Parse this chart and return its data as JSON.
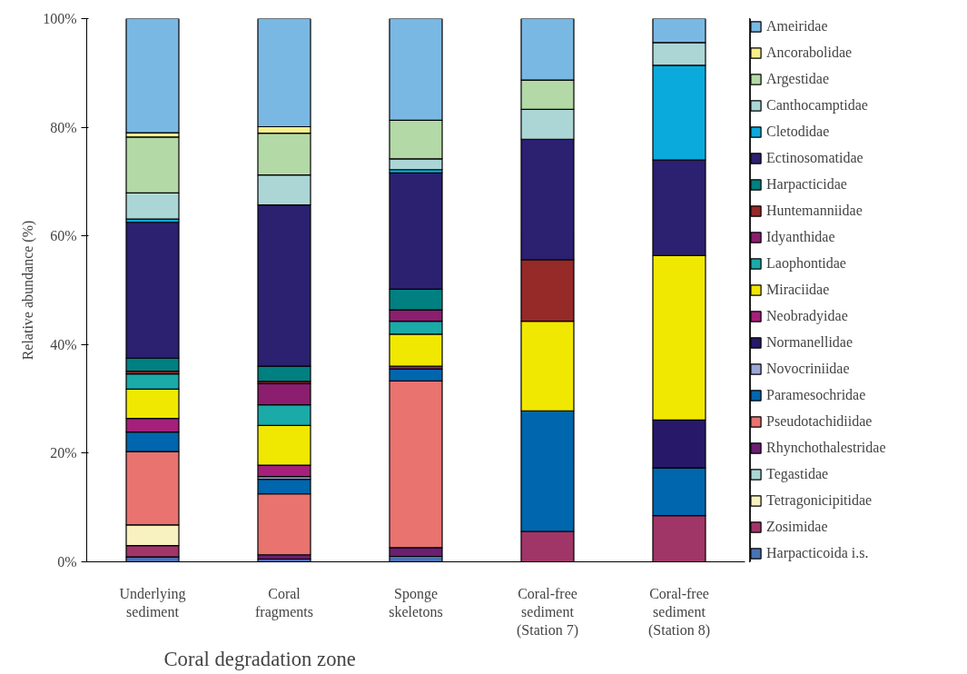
{
  "chart_data": {
    "type": "bar",
    "stacked": true,
    "ylabel": "Relative abundance (%)",
    "categories": [
      "Underlying sediment",
      "Coral fragments",
      "Sponge skeletons",
      "Coral-free sediment (Station 7)",
      "Coral-free sediment (Station 8)"
    ],
    "ylim": [
      0,
      100
    ],
    "yticks": [
      {
        "value": 0,
        "label": "0%"
      },
      {
        "value": 20,
        "label": "20%"
      },
      {
        "value": 40,
        "label": "40%"
      },
      {
        "value": 60,
        "label": "60%"
      },
      {
        "value": 80,
        "label": "80%"
      },
      {
        "value": 100,
        "label": "100%"
      }
    ],
    "grid": false,
    "legend": "right",
    "annotations": [
      "Coral degradation zone"
    ],
    "series": [
      {
        "name": "Harpacticoida i.s.",
        "color": "#4a72b4",
        "values": [
          0.9,
          0.5,
          1.0,
          null,
          null
        ]
      },
      {
        "name": "Zosimidae",
        "color": "#a03668",
        "values": [
          2.1,
          null,
          null,
          5.6,
          8.5
        ]
      },
      {
        "name": "Tetragonicipitidae",
        "color": "#f8f2c0",
        "values": [
          3.8,
          null,
          null,
          null,
          null
        ]
      },
      {
        "name": "Tegastidae",
        "color": "#acd6d6",
        "values": [
          null,
          null,
          null,
          null,
          null
        ]
      },
      {
        "name": "Rhynchothalestridae",
        "color": "#6a1f70",
        "values": [
          null,
          0.8,
          1.6,
          null,
          null
        ]
      },
      {
        "name": "Pseudotachidiidae",
        "color": "#e8736f",
        "values": [
          13.5,
          11.2,
          30.7,
          null,
          null
        ]
      },
      {
        "name": "Paramesochridae",
        "color": "#0066ad",
        "values": [
          3.6,
          2.7,
          2.2,
          22.2,
          8.8
        ]
      },
      {
        "name": "Novocriniidae",
        "color": "#9aa8d6",
        "values": [
          null,
          0.5,
          null,
          null,
          null
        ]
      },
      {
        "name": "Normanellidae",
        "color": "#28186a",
        "values": [
          null,
          null,
          null,
          null,
          8.8
        ]
      },
      {
        "name": "Neobradyidae",
        "color": "#a5207a",
        "values": [
          2.5,
          2.1,
          0.5,
          null,
          null
        ]
      },
      {
        "name": "Miraciidae",
        "color": "#f0e800",
        "values": [
          5.4,
          7.3,
          5.9,
          16.5,
          30.3
        ]
      },
      {
        "name": "Laophontidae",
        "color": "#1aaaa8",
        "values": [
          2.8,
          3.8,
          2.4,
          null,
          null
        ]
      },
      {
        "name": "Idyanthidae",
        "color": "#8b1e6e",
        "values": [
          null,
          3.9,
          2.1,
          null,
          null
        ]
      },
      {
        "name": "Huntemanniidae",
        "color": "#952a29",
        "values": [
          0.5,
          0.4,
          null,
          11.3,
          null
        ]
      },
      {
        "name": "Harpacticidae",
        "color": "#008080",
        "values": [
          2.4,
          2.8,
          3.8,
          null,
          null
        ]
      },
      {
        "name": "Ectinosomatidae",
        "color": "#2c2070",
        "values": [
          25.0,
          29.7,
          21.4,
          22.2,
          17.6
        ]
      },
      {
        "name": "Cletodidae",
        "color": "#0aabdc",
        "values": [
          0.6,
          null,
          0.6,
          null,
          17.4
        ]
      },
      {
        "name": "Canthocamptidae",
        "color": "#acd6d6",
        "values": [
          4.8,
          5.5,
          2.0,
          5.5,
          4.2
        ]
      },
      {
        "name": "Argestidae",
        "color": "#b3d9a6",
        "values": [
          10.3,
          7.7,
          7.1,
          5.4,
          null
        ]
      },
      {
        "name": "Ancorabolidae",
        "color": "#f7f08c",
        "values": [
          0.8,
          1.2,
          null,
          null,
          null
        ]
      },
      {
        "name": "Ameiridae",
        "color": "#7ab8e4",
        "values": [
          21.0,
          19.9,
          18.7,
          11.3,
          4.4
        ]
      }
    ]
  }
}
